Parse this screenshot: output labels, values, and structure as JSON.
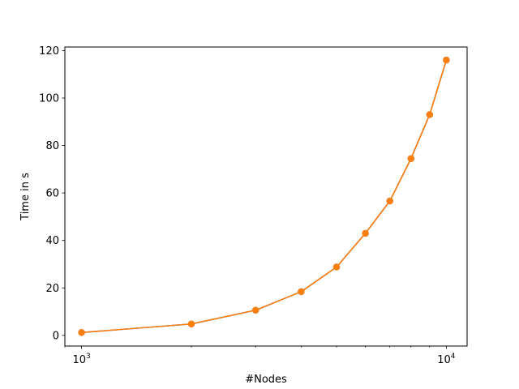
{
  "chart_data": {
    "type": "line",
    "title": "",
    "xlabel": "#Nodes",
    "ylabel": "Time in s",
    "xscale": "log",
    "xlim": [
      900,
      11400
    ],
    "ylim": [
      -4.5,
      121.5
    ],
    "grid": false,
    "legend": "none",
    "x_ticks": [
      {
        "value": 1000,
        "base": "10",
        "exp": "3"
      },
      {
        "value": 10000,
        "base": "10",
        "exp": "4"
      }
    ],
    "x_minor_ticks": [
      900,
      2000,
      3000,
      4000,
      5000,
      6000,
      7000,
      8000,
      9000
    ],
    "y_ticks": [
      0,
      20,
      40,
      60,
      80,
      100,
      120
    ],
    "series": [
      {
        "color": "#1f77b4",
        "marker": "circle",
        "x": [
          1000,
          2000,
          3000,
          4000,
          5000,
          6000,
          7000,
          8000,
          9000,
          10000
        ],
        "y": [
          1.2,
          4.8,
          10.6,
          18.4,
          28.8,
          43.0,
          56.6,
          74.5,
          93.0,
          116.0
        ]
      },
      {
        "color": "#ff7f0e",
        "marker": "circle",
        "x": [
          1000,
          2000,
          3000,
          4000,
          5000,
          6000,
          7000,
          8000,
          9000,
          10000
        ],
        "y": [
          1.2,
          4.8,
          10.6,
          18.4,
          28.8,
          43.0,
          56.6,
          74.5,
          93.0,
          116.0
        ]
      }
    ]
  }
}
